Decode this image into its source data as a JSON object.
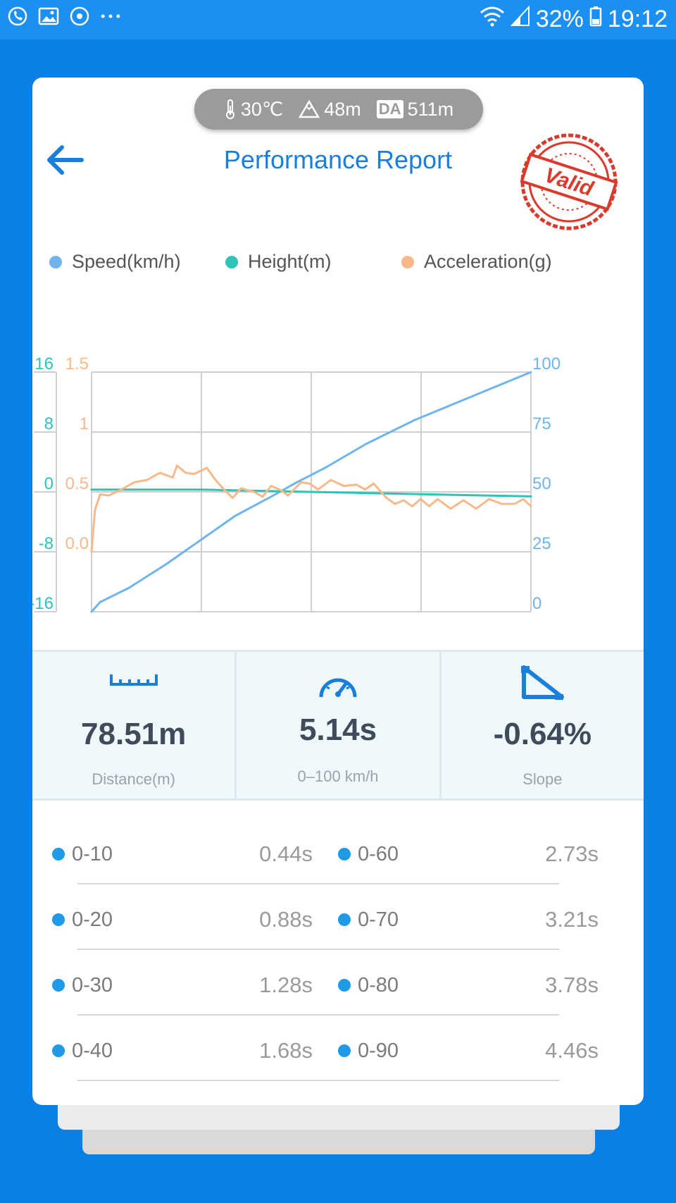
{
  "status_bar": {
    "battery": "32%",
    "time": "19:12",
    "icons": [
      "phone-chat-icon",
      "gallery-icon",
      "app-icon",
      "more-icon",
      "wifi-icon",
      "signal-icon",
      "battery-icon"
    ]
  },
  "env": {
    "temperature": "30℃",
    "altitude": "48m",
    "da_label": "DA",
    "density_altitude": "511m"
  },
  "header": {
    "title": "Performance Report",
    "stamp_text": "Valid"
  },
  "legend": [
    {
      "name": "Speed(km/h)",
      "color": "#6fb4ee"
    },
    {
      "name": "Height(m)",
      "color": "#2fc3b8"
    },
    {
      "name": "Acceleration(g)",
      "color": "#f8b98a"
    }
  ],
  "chart_data": {
    "type": "line",
    "grid": true,
    "axes": {
      "height": {
        "ticks": [
          "16",
          "8",
          "0",
          "-8",
          "-16"
        ],
        "range": [
          -16,
          16
        ],
        "color": "#2fc3b8"
      },
      "acceleration": {
        "ticks": [
          "1.5",
          "1",
          "0.5",
          "0.0"
        ],
        "range": [
          -0.5,
          1.5
        ],
        "color": "#f8b98a"
      },
      "speed": {
        "ticks": [
          "100",
          "75",
          "50",
          "25",
          "0"
        ],
        "range": [
          0,
          100
        ],
        "color": "#6fb4ee"
      }
    },
    "x_range": [
      0,
      5.14
    ],
    "series": [
      {
        "name": "Speed(km/h)",
        "axis": "speed",
        "color": "#6fb4ee",
        "x": [
          0,
          0.1,
          0.44,
          0.88,
          1.28,
          1.68,
          2.1,
          2.4,
          2.73,
          3.21,
          3.78,
          4.46,
          5.14
        ],
        "y": [
          0,
          4,
          10,
          20,
          30,
          40,
          48,
          54,
          60,
          70,
          80,
          90,
          100
        ]
      },
      {
        "name": "Height(m)",
        "axis": "height",
        "color": "#2fc3b8",
        "x": [
          0,
          1.28,
          2.57,
          3.85,
          5.14
        ],
        "y": [
          0.3,
          0.3,
          0,
          -0.3,
          -0.6
        ]
      },
      {
        "name": "Acceleration(g)",
        "axis": "acceleration",
        "color": "#f8b98a",
        "x": [
          0,
          0.04,
          0.1,
          0.2,
          0.35,
          0.5,
          0.65,
          0.8,
          0.95,
          1.0,
          1.1,
          1.2,
          1.35,
          1.45,
          1.55,
          1.65,
          1.75,
          1.9,
          2.0,
          2.1,
          2.2,
          2.3,
          2.45,
          2.55,
          2.65,
          2.8,
          2.95,
          3.1,
          3.2,
          3.3,
          3.45,
          3.55,
          3.65,
          3.75,
          3.85,
          3.95,
          4.05,
          4.2,
          4.35,
          4.5,
          4.65,
          4.8,
          4.95,
          5.05,
          5.14
        ],
        "y": [
          0,
          0.35,
          0.48,
          0.47,
          0.52,
          0.58,
          0.6,
          0.66,
          0.62,
          0.72,
          0.66,
          0.65,
          0.7,
          0.6,
          0.52,
          0.45,
          0.53,
          0.5,
          0.46,
          0.55,
          0.52,
          0.47,
          0.58,
          0.57,
          0.52,
          0.6,
          0.55,
          0.56,
          0.52,
          0.57,
          0.45,
          0.4,
          0.43,
          0.38,
          0.44,
          0.38,
          0.44,
          0.36,
          0.43,
          0.36,
          0.44,
          0.4,
          0.4,
          0.44,
          0.38
        ]
      }
    ]
  },
  "stats": [
    {
      "icon": "ruler-icon",
      "value": "78.51m",
      "label": "Distance(m)"
    },
    {
      "icon": "speedometer-icon",
      "value": "5.14s",
      "label": "0–100 km/h"
    },
    {
      "icon": "slope-icon",
      "value": "-0.64%",
      "label": "Slope"
    }
  ],
  "times": [
    {
      "left": {
        "label": "0-10",
        "value": "0.44s"
      },
      "right": {
        "label": "0-60",
        "value": "2.73s"
      }
    },
    {
      "left": {
        "label": "0-20",
        "value": "0.88s"
      },
      "right": {
        "label": "0-70",
        "value": "3.21s"
      }
    },
    {
      "left": {
        "label": "0-30",
        "value": "1.28s"
      },
      "right": {
        "label": "0-80",
        "value": "3.78s"
      }
    },
    {
      "left": {
        "label": "0-40",
        "value": "1.68s"
      },
      "right": {
        "label": "0-90",
        "value": "4.46s"
      }
    }
  ],
  "colors": {
    "accent": "#1a7fdc",
    "background": "#0a7fe6",
    "stamp": "#d93a2b"
  }
}
